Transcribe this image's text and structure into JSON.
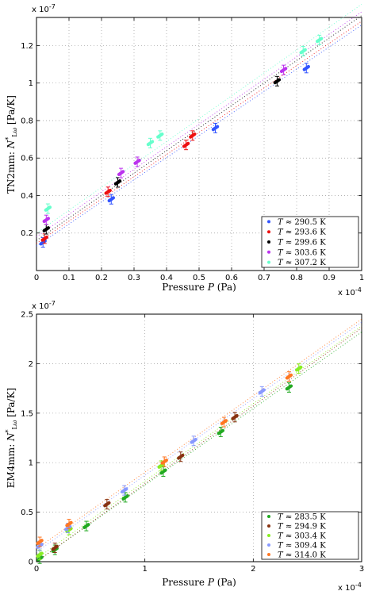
{
  "chart_data": [
    {
      "type": "scatter",
      "title": "",
      "xlabel": "Pressure P (Pa)",
      "ylabel": "TN2mm: N*_Lω [Pa/K]",
      "x_multiplier": "x 10^-4",
      "y_multiplier": "x 10^-7",
      "xlim": [
        0,
        1
      ],
      "ylim": [
        0,
        1.35
      ],
      "x_ticks": [
        "0",
        "0.1",
        "0.2",
        "0.3",
        "0.4",
        "0.5",
        "0.6",
        "0.7",
        "0.8",
        "0.9",
        "1"
      ],
      "y_ticks": [
        "0.2",
        "0.4",
        "0.6",
        "0.8",
        "1",
        "1.2"
      ],
      "grid": true,
      "legend_position": "bottom-right",
      "series": [
        {
          "name": "T ≈ 290.5 K",
          "color": "#3355ff",
          "points": [
            [
              0.02,
              0.15
            ],
            [
              0.23,
              0.38
            ],
            [
              0.55,
              0.76
            ],
            [
              0.83,
              1.08
            ]
          ],
          "fit": [
            [
              0.0,
              0.13
            ],
            [
              1.0,
              1.31
            ]
          ]
        },
        {
          "name": "T ≈ 293.6 K",
          "color": "#ee1111",
          "points": [
            [
              0.025,
              0.17
            ],
            [
              0.22,
              0.42
            ],
            [
              0.46,
              0.67
            ],
            [
              0.48,
              0.72
            ]
          ],
          "fit": [
            [
              0.0,
              0.145
            ],
            [
              1.0,
              1.33
            ]
          ]
        },
        {
          "name": "T ≈ 299.6 K",
          "color": "#000000",
          "points": [
            [
              0.03,
              0.22
            ],
            [
              0.25,
              0.47
            ],
            [
              0.74,
              1.01
            ]
          ],
          "fit": [
            [
              0.0,
              0.16
            ],
            [
              1.0,
              1.36
            ]
          ]
        },
        {
          "name": "T ≈ 303.6 K",
          "color": "#bb33ee",
          "points": [
            [
              0.03,
              0.27
            ],
            [
              0.26,
              0.52
            ],
            [
              0.31,
              0.58
            ],
            [
              0.76,
              1.07
            ]
          ],
          "fit": [
            [
              0.0,
              0.18
            ],
            [
              1.0,
              1.38
            ]
          ]
        },
        {
          "name": "T ≈ 307.2 K",
          "color": "#66ffcc",
          "points": [
            [
              0.035,
              0.33
            ],
            [
              0.35,
              0.68
            ],
            [
              0.38,
              0.72
            ],
            [
              0.82,
              1.17
            ],
            [
              0.87,
              1.23
            ]
          ],
          "fit": [
            [
              0.0,
              0.2
            ],
            [
              1.0,
              1.42
            ]
          ]
        }
      ]
    },
    {
      "type": "scatter",
      "title": "",
      "xlabel": "Pressure P (Pa)",
      "ylabel": "EM4mm: N*_Lω [Pa/K]",
      "x_multiplier": "x 10^-4",
      "y_multiplier": "x 10^-7",
      "xlim": [
        0,
        3
      ],
      "ylim": [
        0,
        2.5
      ],
      "x_ticks": [
        "0",
        "1",
        "2",
        "3"
      ],
      "y_ticks": [
        "0",
        "0.5",
        "1",
        "1.5",
        "2",
        "2.5"
      ],
      "grid": true,
      "legend_position": "bottom-right",
      "series": [
        {
          "name": "T ≈ 283.5 K",
          "color": "#22aa22",
          "points": [
            [
              0.03,
              0.03
            ],
            [
              0.17,
              0.12
            ],
            [
              0.46,
              0.36
            ],
            [
              0.82,
              0.65
            ],
            [
              1.17,
              0.91
            ],
            [
              1.7,
              1.31
            ],
            [
              2.33,
              1.76
            ]
          ],
          "fit": [
            [
              0.0,
              0.0
            ],
            [
              3.0,
              2.32
            ]
          ]
        },
        {
          "name": "T ≈ 294.9 K",
          "color": "#883311",
          "points": [
            [
              0.17,
              0.14
            ],
            [
              0.65,
              0.58
            ],
            [
              1.33,
              1.06
            ],
            [
              1.83,
              1.46
            ]
          ],
          "fit": [
            [
              0.0,
              0.0
            ],
            [
              3.0,
              2.36
            ]
          ]
        },
        {
          "name": "T ≈ 303.4 K",
          "color": "#88ee22",
          "points": [
            [
              0.03,
              0.07
            ],
            [
              0.3,
              0.32
            ],
            [
              1.15,
              0.97
            ],
            [
              2.42,
              1.95
            ]
          ],
          "fit": [
            [
              0.0,
              0.03
            ],
            [
              3.0,
              2.38
            ]
          ]
        },
        {
          "name": "T ≈ 309.4 K",
          "color": "#8899ff",
          "points": [
            [
              0.03,
              0.16
            ],
            [
              0.29,
              0.34
            ],
            [
              0.81,
              0.72
            ],
            [
              1.45,
              1.22
            ],
            [
              2.08,
              1.72
            ]
          ],
          "fit": [
            [
              0.0,
              0.1
            ],
            [
              3.0,
              2.42
            ]
          ]
        },
        {
          "name": "T ≈ 314.0 K",
          "color": "#ff7722",
          "points": [
            [
              0.03,
              0.2
            ],
            [
              0.3,
              0.38
            ],
            [
              1.18,
              1.01
            ],
            [
              1.73,
              1.41
            ],
            [
              2.33,
              1.87
            ]
          ],
          "fit": [
            [
              0.0,
              0.13
            ],
            [
              3.0,
              2.45
            ]
          ]
        }
      ]
    }
  ]
}
